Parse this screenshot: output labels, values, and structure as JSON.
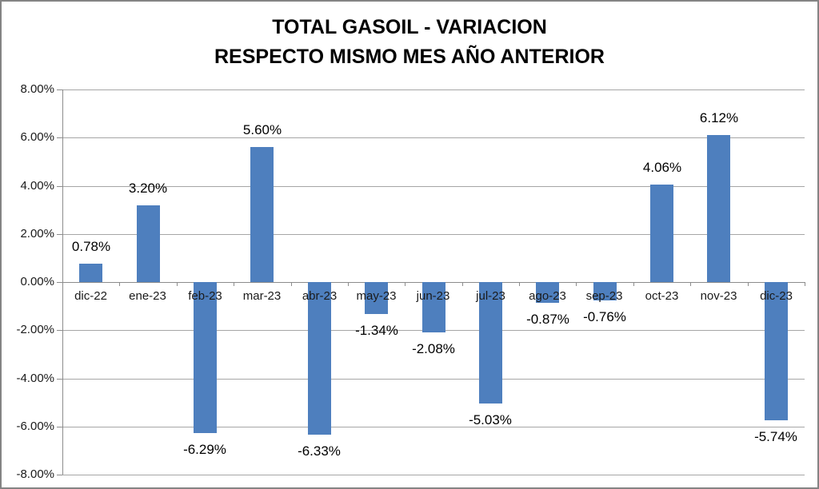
{
  "frame": {
    "background_color": "#ffffff",
    "border_color": "#848484"
  },
  "title": {
    "line1": "TOTAL GASOIL - VARIACION",
    "line2": "RESPECTO MISMO MES AÑO ANTERIOR"
  },
  "chart_data": {
    "type": "bar",
    "title": "TOTAL GASOIL - VARIACION RESPECTO MISMO MES AÑO ANTERIOR",
    "xlabel": "",
    "ylabel": "",
    "categories": [
      "dic-22",
      "ene-23",
      "feb-23",
      "mar-23",
      "abr-23",
      "may-23",
      "jun-23",
      "jul-23",
      "ago-23",
      "sep-23",
      "oct-23",
      "nov-23",
      "dic-23"
    ],
    "values": [
      0.78,
      3.2,
      -6.29,
      5.6,
      -6.33,
      -1.34,
      -2.08,
      -5.03,
      -0.87,
      -0.76,
      4.06,
      6.12,
      -5.74
    ],
    "data_labels": [
      "0.78%",
      "3.20%",
      "-6.29%",
      "5.60%",
      "-6.33%",
      "-1.34%",
      "-2.08%",
      "-5.03%",
      "-0.87%",
      "-0.76%",
      "4.06%",
      "6.12%",
      "-5.74%"
    ],
    "ylim": [
      -8,
      8
    ],
    "ytick_step": 2,
    "ytick_labels": [
      "8.00%",
      "6.00%",
      "4.00%",
      "2.00%",
      "0.00%",
      "-2.00%",
      "-4.00%",
      "-6.00%",
      "-8.00%"
    ],
    "grid": true,
    "legend_position": "none",
    "bar_color": "#4e7fbe",
    "gridline_color": "#a6a6a6",
    "axis_color": "#8c8c8c",
    "text_color": "#1a1a1a"
  }
}
